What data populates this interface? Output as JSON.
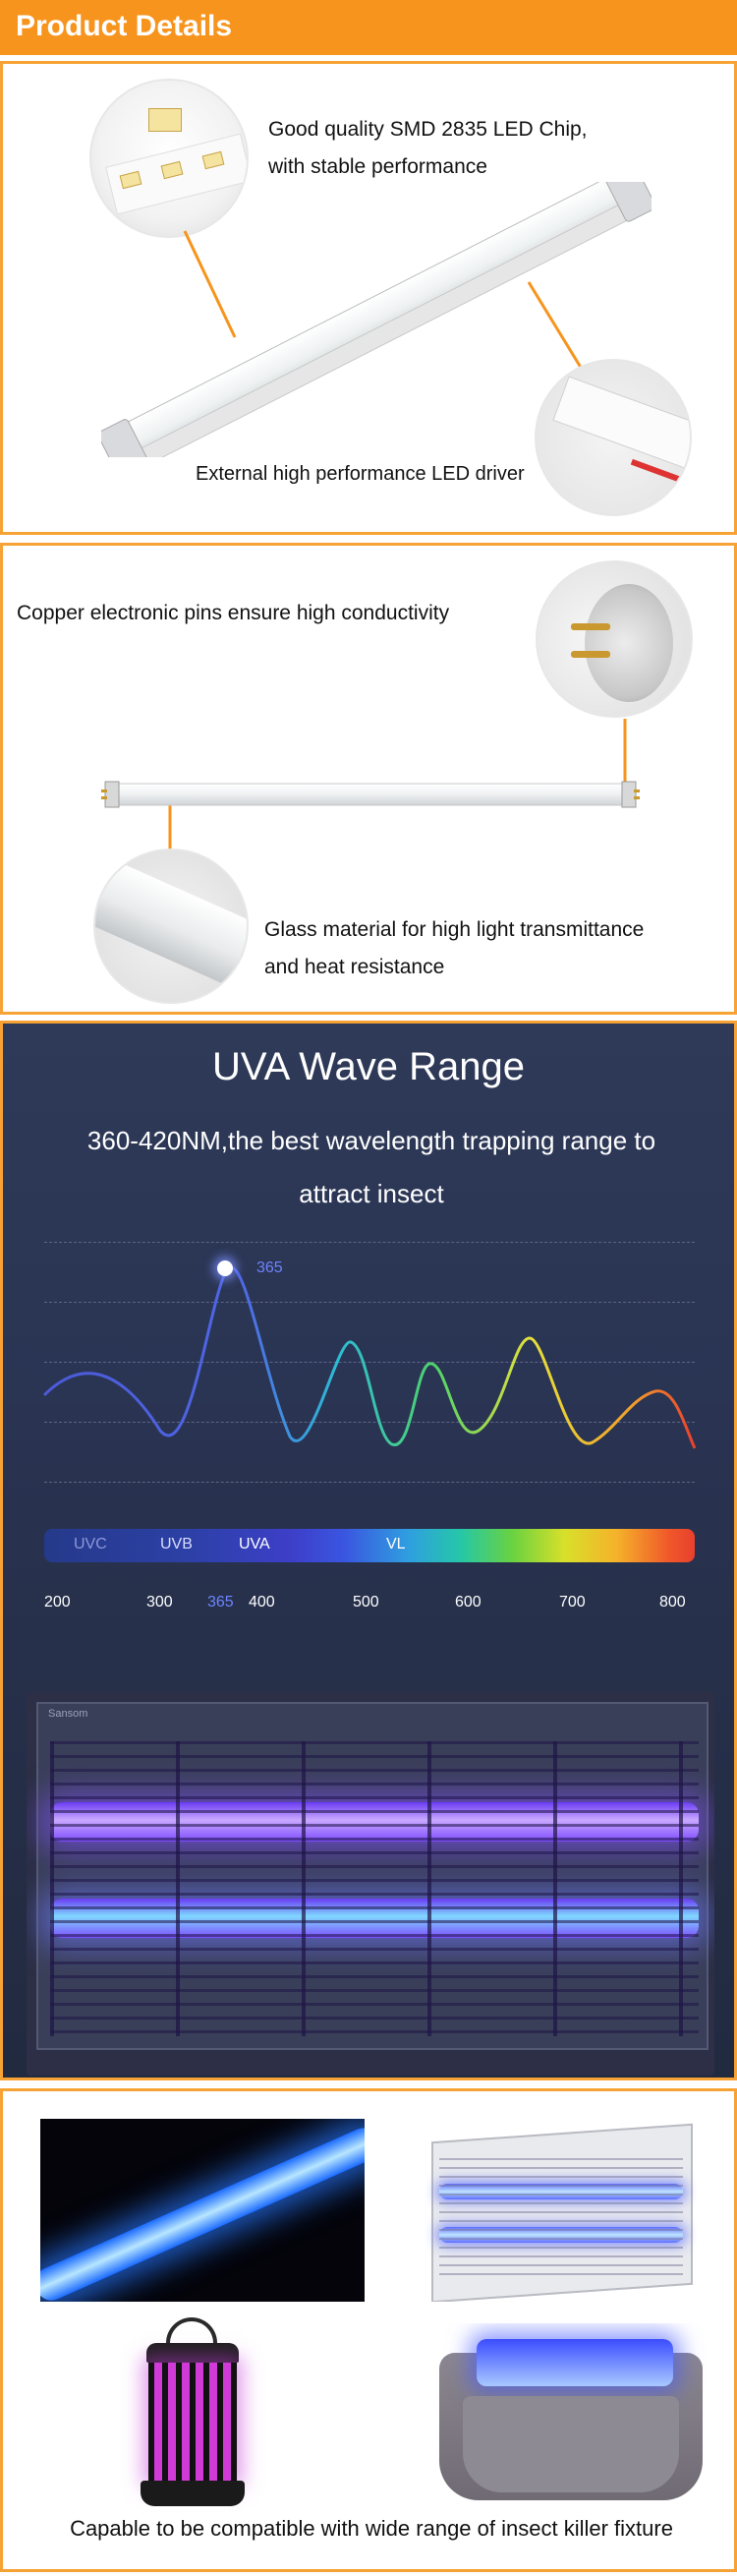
{
  "header": {
    "title": "Product Details"
  },
  "panel1": {
    "chip_caption_line1": "Good quality SMD 2835 LED Chip,",
    "chip_caption_line2": "with stable performance",
    "driver_caption": "External high performance LED driver"
  },
  "panel2": {
    "pins_caption": "Copper electronic pins ensure high conductivity",
    "glass_caption_line1": "Glass material for high light transmittance",
    "glass_caption_line2": "and heat resistance"
  },
  "uva": {
    "title": "UVA Wave Range",
    "subtitle_line1": "360-420NM,the best wavelength trapping range to",
    "subtitle_line2": "attract insect",
    "peak_label": "365",
    "bands": [
      "UVC",
      "UVB",
      "UVA",
      "VL"
    ],
    "ticks": [
      "200",
      "300",
      "365",
      "400",
      "500",
      "600",
      "700",
      "800"
    ],
    "highlight_tick": "365",
    "brand_text": "Sansom"
  },
  "panel4": {
    "caption": "Capable to be compatible with wide range of insect killer fixture"
  },
  "colors": {
    "accent": "#f7941d",
    "border": "#f7a234",
    "uva_bg": "#2a3453"
  }
}
